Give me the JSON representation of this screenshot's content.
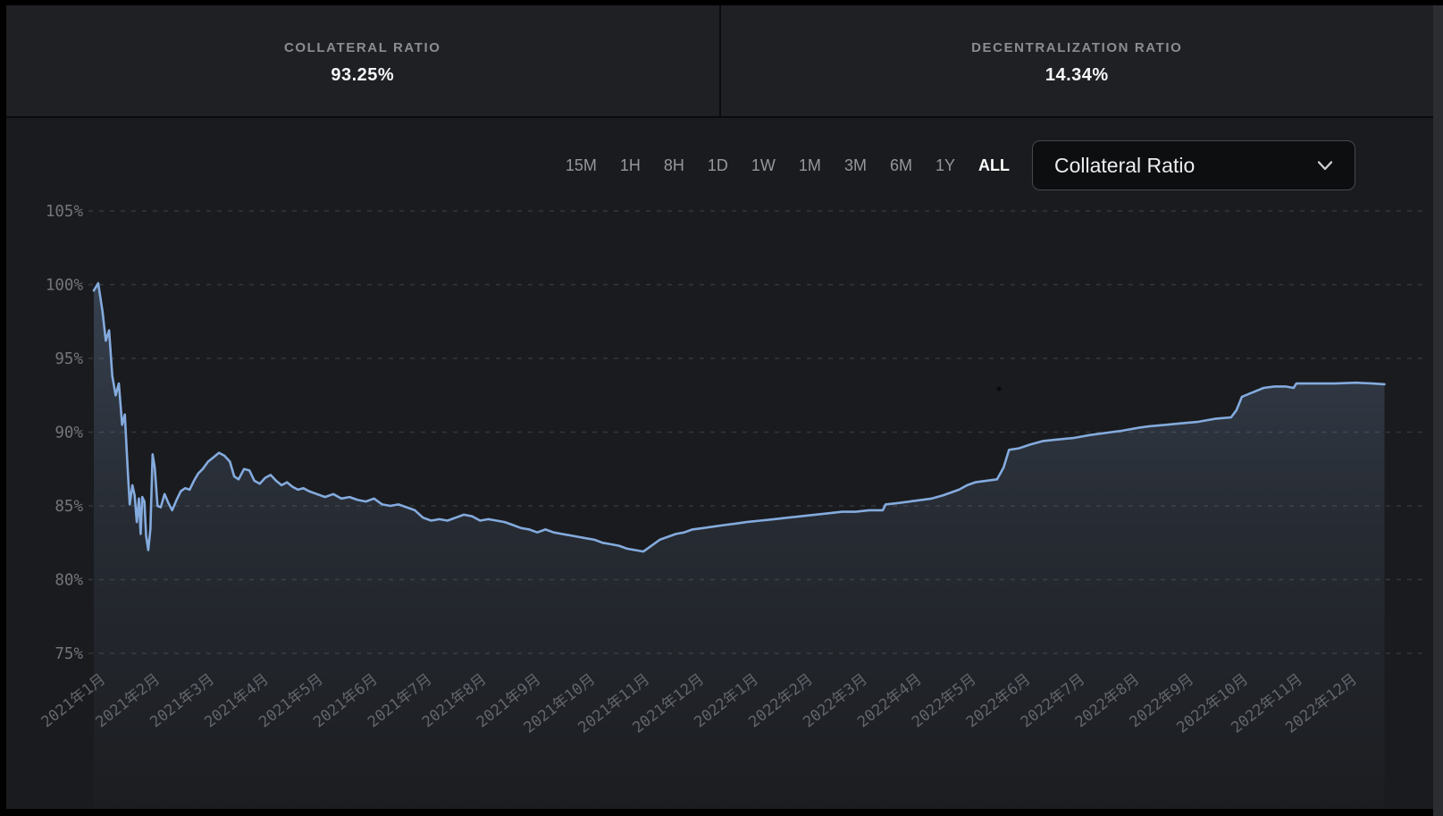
{
  "header": {
    "stats": [
      {
        "label": "COLLATERAL RATIO",
        "value": "93.25%"
      },
      {
        "label": "DECENTRALIZATION RATIO",
        "value": "14.34%"
      }
    ]
  },
  "controls": {
    "ranges": [
      "15M",
      "1H",
      "8H",
      "1D",
      "1W",
      "1M",
      "3M",
      "6M",
      "1Y",
      "ALL"
    ],
    "active_range": "ALL",
    "metric_dropdown": {
      "selected": "Collateral Ratio",
      "icon": "chevron-down-icon"
    }
  },
  "colors": {
    "page_frame": "#000000",
    "header_bg": "#1e2023",
    "chart_bg": "#1a1b1e",
    "divider": "#0a0b0c",
    "line": "#84abde",
    "fill_top": "rgba(126,160,205,0.34)",
    "fill_bottom": "rgba(110,135,170,0.02)",
    "grid": "#55585e",
    "active_text": "#ffffff",
    "muted_text": "#95979c"
  },
  "chart_data": {
    "type": "area",
    "metric": "Collateral Ratio",
    "range": "ALL",
    "unit": "%",
    "ylim": [
      75,
      105
    ],
    "grid": "horizontal dashed",
    "legend": "none",
    "y_ticks": [
      {
        "label": "105%",
        "value": 105
      },
      {
        "label": "100%",
        "value": 100
      },
      {
        "label": "95%",
        "value": 95
      },
      {
        "label": "90%",
        "value": 90
      },
      {
        "label": "85%",
        "value": 85
      },
      {
        "label": "80%",
        "value": 80
      },
      {
        "label": "75%",
        "value": 75
      }
    ],
    "x_tick_labels": [
      "2021年1月",
      "2021年2月",
      "2021年3月",
      "2021年4月",
      "2021年5月",
      "2021年6月",
      "2021年7月",
      "2021年8月",
      "2021年9月",
      "2021年10月",
      "2021年11月",
      "2021年12月",
      "2022年1月",
      "2022年2月",
      "2022年3月",
      "2022年4月",
      "2022年5月",
      "2022年6月",
      "2022年7月",
      "2022年8月",
      "2022年9月",
      "2022年10月",
      "2022年11月",
      "2022年12月"
    ],
    "x_note": "points use fractional month index, 0 = 2021年1月",
    "series": [
      {
        "name": "Collateral Ratio",
        "points": [
          [
            0.0,
            99.6
          ],
          [
            0.08,
            100.1
          ],
          [
            0.16,
            98.2
          ],
          [
            0.22,
            96.2
          ],
          [
            0.28,
            96.9
          ],
          [
            0.34,
            93.8
          ],
          [
            0.4,
            92.5
          ],
          [
            0.46,
            93.3
          ],
          [
            0.52,
            90.5
          ],
          [
            0.57,
            91.2
          ],
          [
            0.62,
            87.6
          ],
          [
            0.66,
            85.1
          ],
          [
            0.71,
            86.4
          ],
          [
            0.75,
            85.7
          ],
          [
            0.79,
            83.9
          ],
          [
            0.83,
            85.5
          ],
          [
            0.86,
            83.1
          ],
          [
            0.89,
            85.6
          ],
          [
            0.93,
            85.3
          ],
          [
            0.96,
            83.0
          ],
          [
            1.0,
            82.0
          ],
          [
            1.04,
            83.4
          ],
          [
            1.08,
            88.5
          ],
          [
            1.12,
            87.6
          ],
          [
            1.17,
            85.0
          ],
          [
            1.23,
            84.9
          ],
          [
            1.3,
            85.8
          ],
          [
            1.37,
            85.2
          ],
          [
            1.44,
            84.7
          ],
          [
            1.52,
            85.4
          ],
          [
            1.6,
            86.0
          ],
          [
            1.68,
            86.2
          ],
          [
            1.76,
            86.1
          ],
          [
            1.84,
            86.7
          ],
          [
            1.92,
            87.2
          ],
          [
            2.0,
            87.5
          ],
          [
            2.1,
            88.0
          ],
          [
            2.2,
            88.3
          ],
          [
            2.3,
            88.6
          ],
          [
            2.4,
            88.4
          ],
          [
            2.5,
            88.0
          ],
          [
            2.58,
            87.0
          ],
          [
            2.66,
            86.8
          ],
          [
            2.76,
            87.5
          ],
          [
            2.86,
            87.4
          ],
          [
            2.95,
            86.7
          ],
          [
            3.05,
            86.5
          ],
          [
            3.15,
            86.9
          ],
          [
            3.25,
            87.1
          ],
          [
            3.35,
            86.7
          ],
          [
            3.45,
            86.4
          ],
          [
            3.55,
            86.6
          ],
          [
            3.65,
            86.3
          ],
          [
            3.75,
            86.1
          ],
          [
            3.85,
            86.2
          ],
          [
            3.95,
            86.0
          ],
          [
            4.1,
            85.8
          ],
          [
            4.25,
            85.6
          ],
          [
            4.4,
            85.8
          ],
          [
            4.55,
            85.5
          ],
          [
            4.7,
            85.6
          ],
          [
            4.85,
            85.4
          ],
          [
            5.0,
            85.3
          ],
          [
            5.15,
            85.5
          ],
          [
            5.3,
            85.1
          ],
          [
            5.45,
            85.0
          ],
          [
            5.6,
            85.1
          ],
          [
            5.75,
            84.9
          ],
          [
            5.9,
            84.7
          ],
          [
            6.05,
            84.2
          ],
          [
            6.2,
            84.0
          ],
          [
            6.35,
            84.1
          ],
          [
            6.5,
            84.0
          ],
          [
            6.65,
            84.2
          ],
          [
            6.8,
            84.4
          ],
          [
            6.95,
            84.3
          ],
          [
            7.1,
            84.0
          ],
          [
            7.25,
            84.1
          ],
          [
            7.4,
            84.0
          ],
          [
            7.55,
            83.9
          ],
          [
            7.7,
            83.7
          ],
          [
            7.85,
            83.5
          ],
          [
            8.0,
            83.4
          ],
          [
            8.15,
            83.2
          ],
          [
            8.3,
            83.4
          ],
          [
            8.45,
            83.2
          ],
          [
            8.6,
            83.1
          ],
          [
            8.75,
            83.0
          ],
          [
            8.9,
            82.9
          ],
          [
            9.05,
            82.8
          ],
          [
            9.2,
            82.7
          ],
          [
            9.35,
            82.5
          ],
          [
            9.5,
            82.4
          ],
          [
            9.65,
            82.3
          ],
          [
            9.8,
            82.1
          ],
          [
            9.95,
            82.0
          ],
          [
            10.1,
            81.9
          ],
          [
            10.25,
            82.3
          ],
          [
            10.4,
            82.7
          ],
          [
            10.55,
            82.9
          ],
          [
            10.7,
            83.1
          ],
          [
            10.85,
            83.2
          ],
          [
            11.0,
            83.4
          ],
          [
            11.2,
            83.5
          ],
          [
            11.4,
            83.6
          ],
          [
            11.6,
            83.7
          ],
          [
            11.8,
            83.8
          ],
          [
            12.0,
            83.9
          ],
          [
            12.25,
            84.0
          ],
          [
            12.5,
            84.1
          ],
          [
            12.75,
            84.2
          ],
          [
            13.0,
            84.3
          ],
          [
            13.25,
            84.4
          ],
          [
            13.5,
            84.5
          ],
          [
            13.75,
            84.6
          ],
          [
            14.0,
            84.6
          ],
          [
            14.25,
            84.7
          ],
          [
            14.5,
            84.7
          ],
          [
            14.55,
            85.1
          ],
          [
            14.8,
            85.2
          ],
          [
            15.0,
            85.3
          ],
          [
            15.2,
            85.4
          ],
          [
            15.4,
            85.5
          ],
          [
            15.6,
            85.7
          ],
          [
            15.75,
            85.9
          ],
          [
            15.9,
            86.1
          ],
          [
            16.05,
            86.4
          ],
          [
            16.2,
            86.6
          ],
          [
            16.4,
            86.7
          ],
          [
            16.6,
            86.8
          ],
          [
            16.72,
            87.6
          ],
          [
            16.82,
            88.8
          ],
          [
            17.0,
            88.9
          ],
          [
            17.2,
            89.15
          ],
          [
            17.45,
            89.4
          ],
          [
            17.7,
            89.5
          ],
          [
            18.0,
            89.6
          ],
          [
            18.3,
            89.8
          ],
          [
            18.7,
            90.0
          ],
          [
            18.9,
            90.1
          ],
          [
            19.2,
            90.3
          ],
          [
            19.4,
            90.4
          ],
          [
            19.7,
            90.5
          ],
          [
            20.0,
            90.6
          ],
          [
            20.3,
            90.7
          ],
          [
            20.6,
            90.9
          ],
          [
            20.9,
            91.0
          ],
          [
            21.0,
            91.5
          ],
          [
            21.1,
            92.4
          ],
          [
            21.3,
            92.7
          ],
          [
            21.5,
            93.0
          ],
          [
            21.7,
            93.1
          ],
          [
            21.9,
            93.1
          ],
          [
            22.05,
            93.0
          ],
          [
            22.1,
            93.3
          ],
          [
            22.4,
            93.3
          ],
          [
            22.8,
            93.3
          ],
          [
            23.2,
            93.35
          ],
          [
            23.5,
            93.3
          ],
          [
            23.72,
            93.25
          ]
        ]
      }
    ]
  }
}
